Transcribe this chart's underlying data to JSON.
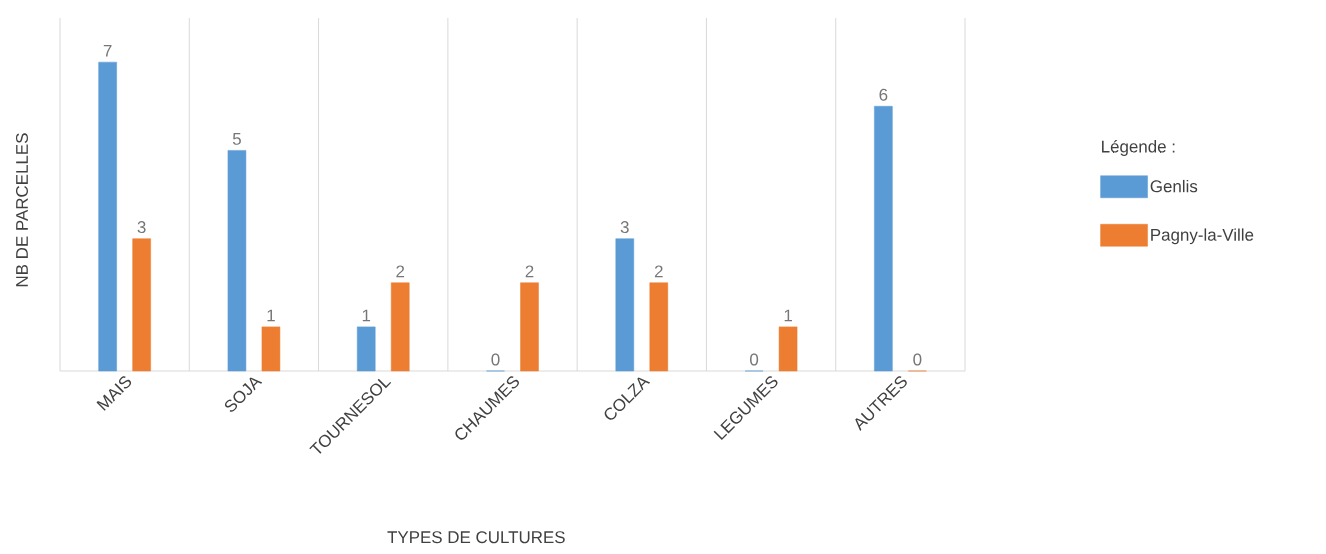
{
  "chart_data": {
    "type": "bar",
    "xlabel": "TYPES DE CULTURES",
    "ylabel": "NB DE PARCELLES",
    "legend_title": "Légende :",
    "categories": [
      "MAIS",
      "SOJA",
      "TOURNESOL",
      "CHAUMES",
      "COLZA",
      "LEGUMES",
      "AUTRES"
    ],
    "series": [
      {
        "name": "Genlis",
        "color": "#5b9bd5",
        "values": [
          7,
          5,
          1,
          0,
          3,
          0,
          6
        ]
      },
      {
        "name": "Pagny-la-Ville",
        "color": "#ed7d31",
        "values": [
          3,
          1,
          2,
          2,
          2,
          1,
          0
        ]
      }
    ],
    "ylim": [
      0,
      8
    ],
    "data_labels": true,
    "grid": "x",
    "legend": "right"
  }
}
